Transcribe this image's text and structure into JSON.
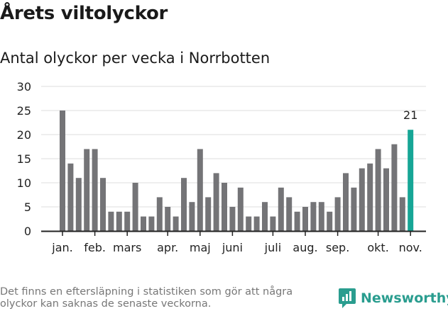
{
  "header": {
    "title": "Årets viltolyckor",
    "subtitle": "Antal olyckor per vecka i Norrbotten"
  },
  "chart_data": {
    "type": "bar",
    "title": "Årets viltolyckor",
    "subtitle": "Antal olyckor per vecka i Norrbotten",
    "xlabel": "",
    "ylabel": "",
    "ylim": [
      0,
      30
    ],
    "yticks": [
      0,
      5,
      10,
      15,
      20,
      25,
      30
    ],
    "grid": true,
    "values": [
      25,
      14,
      11,
      17,
      17,
      11,
      4,
      4,
      4,
      10,
      3,
      3,
      7,
      5,
      3,
      11,
      6,
      17,
      7,
      12,
      10,
      5,
      9,
      3,
      3,
      6,
      3,
      9,
      7,
      4,
      5,
      6,
      6,
      4,
      7,
      12,
      9,
      13,
      14,
      17,
      13,
      18,
      7,
      21
    ],
    "month_labels": [
      {
        "label": "jan.",
        "at_bar": 0
      },
      {
        "label": "feb.",
        "at_bar": 4
      },
      {
        "label": "mars",
        "at_bar": 8
      },
      {
        "label": "apr.",
        "at_bar": 13
      },
      {
        "label": "maj",
        "at_bar": 17
      },
      {
        "label": "juni",
        "at_bar": 21
      },
      {
        "label": "juli",
        "at_bar": 26
      },
      {
        "label": "aug.",
        "at_bar": 30
      },
      {
        "label": "sep.",
        "at_bar": 34
      },
      {
        "label": "okt.",
        "at_bar": 39
      },
      {
        "label": "nov.",
        "at_bar": 43
      }
    ],
    "highlight": {
      "bar_index": 43,
      "label": "21"
    },
    "colors": {
      "bar": "#747477",
      "highlight": "#16a696",
      "grid": "#dcdcdc",
      "axis": "#222222"
    }
  },
  "footer": {
    "note": "Det finns en eftersläpning i statistiken som gör att några olyckor kan saknas de senaste veckorna.",
    "brand": "Newsworthy",
    "brand_icon": "newsworthy-logo-icon"
  }
}
